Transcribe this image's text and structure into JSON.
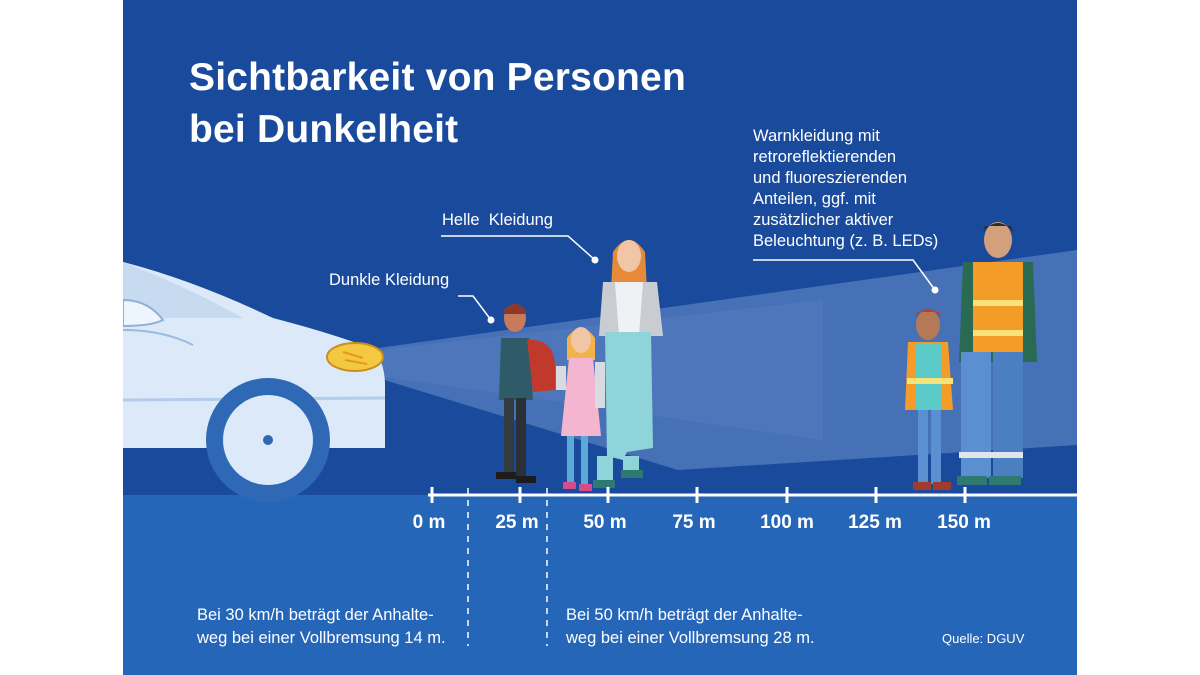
{
  "title_line1": "Sichtbarkeit von Personen",
  "title_line2": "bei Dunkelheit",
  "labels": {
    "dark_clothing": "Dunkle Kleidung",
    "bright_clothing": "Helle  Kleidung",
    "warning_clothing": [
      "Warnkleidung mit",
      "retroreflektierenden",
      "und fluoreszierenden",
      "Anteilen, ggf. mit",
      "zusätzlicher aktiver",
      "Beleuchtung (z. B. LEDs)"
    ]
  },
  "axis_ticks": [
    "0 m",
    "25 m",
    "50 m",
    "75 m",
    "100 m",
    "125 m",
    "150 m"
  ],
  "notes": {
    "speed30": [
      "Bei 30 km/h beträgt der Anhalte-",
      "weg bei einer Vollbremsung 14 m."
    ],
    "speed50": [
      "Bei 50 km/h beträgt der Anhalte-",
      "weg bei einer Vollbremsung 28 m."
    ]
  },
  "source": "Quelle: DGUV",
  "colors": {
    "sky": "#1a4a9c",
    "ground": "#2566b8",
    "beam": "#4a73b8",
    "car": "#dbe9f8",
    "vest": "#f39c27"
  }
}
